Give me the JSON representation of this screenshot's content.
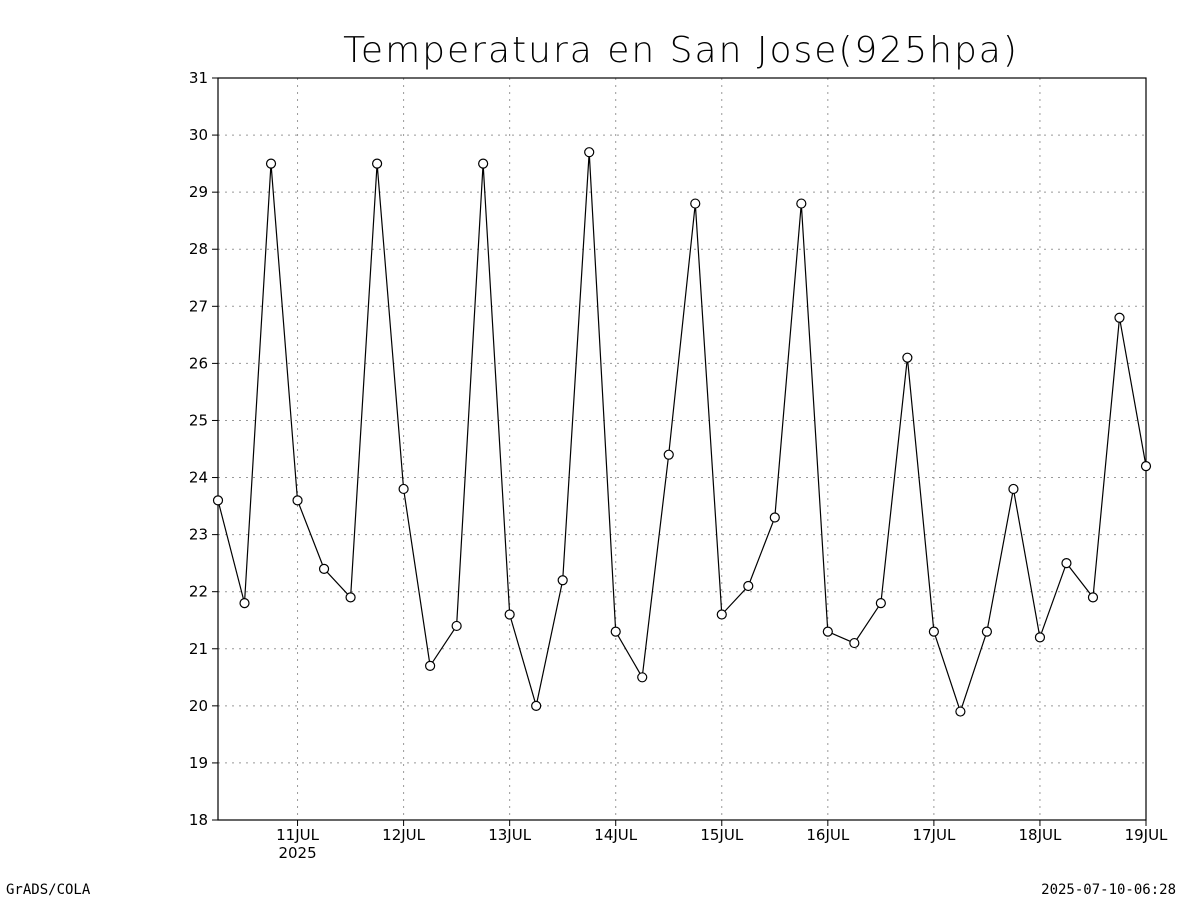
{
  "chart_data": {
    "type": "line",
    "title": "Temperatura en San Jose(925hpa)",
    "xlabel": "",
    "ylabel": "",
    "x_range": [
      "2025-07-10T06:00",
      "2025-07-19T00:00"
    ],
    "ylim": [
      18,
      31
    ],
    "y_ticks": [
      18,
      19,
      20,
      21,
      22,
      23,
      24,
      25,
      26,
      27,
      28,
      29,
      30,
      31
    ],
    "x_ticks": [
      {
        "x": "2025-07-11T00:00",
        "label": "11JUL",
        "sublabel": "2025"
      },
      {
        "x": "2025-07-12T00:00",
        "label": "12JUL",
        "sublabel": ""
      },
      {
        "x": "2025-07-13T00:00",
        "label": "13JUL",
        "sublabel": ""
      },
      {
        "x": "2025-07-14T00:00",
        "label": "14JUL",
        "sublabel": ""
      },
      {
        "x": "2025-07-15T00:00",
        "label": "15JUL",
        "sublabel": ""
      },
      {
        "x": "2025-07-16T00:00",
        "label": "16JUL",
        "sublabel": ""
      },
      {
        "x": "2025-07-17T00:00",
        "label": "17JUL",
        "sublabel": ""
      },
      {
        "x": "2025-07-18T00:00",
        "label": "18JUL",
        "sublabel": ""
      },
      {
        "x": "2025-07-19T00:00",
        "label": "19JUL",
        "sublabel": ""
      }
    ],
    "grid": true,
    "series": [
      {
        "name": "",
        "color": "#000000",
        "marker": "open-circle",
        "points": [
          {
            "x": "2025-07-10T06:00",
            "y": 23.6
          },
          {
            "x": "2025-07-10T12:00",
            "y": 21.8
          },
          {
            "x": "2025-07-10T18:00",
            "y": 29.5
          },
          {
            "x": "2025-07-11T00:00",
            "y": 23.6
          },
          {
            "x": "2025-07-11T06:00",
            "y": 22.4
          },
          {
            "x": "2025-07-11T12:00",
            "y": 21.9
          },
          {
            "x": "2025-07-11T18:00",
            "y": 29.5
          },
          {
            "x": "2025-07-12T00:00",
            "y": 23.8
          },
          {
            "x": "2025-07-12T06:00",
            "y": 20.7
          },
          {
            "x": "2025-07-12T12:00",
            "y": 21.4
          },
          {
            "x": "2025-07-12T18:00",
            "y": 29.5
          },
          {
            "x": "2025-07-13T00:00",
            "y": 21.6
          },
          {
            "x": "2025-07-13T06:00",
            "y": 20.0
          },
          {
            "x": "2025-07-13T12:00",
            "y": 22.2
          },
          {
            "x": "2025-07-13T18:00",
            "y": 29.7
          },
          {
            "x": "2025-07-14T00:00",
            "y": 21.3
          },
          {
            "x": "2025-07-14T06:00",
            "y": 20.5
          },
          {
            "x": "2025-07-14T12:00",
            "y": 24.4
          },
          {
            "x": "2025-07-14T18:00",
            "y": 28.8
          },
          {
            "x": "2025-07-15T00:00",
            "y": 21.6
          },
          {
            "x": "2025-07-15T06:00",
            "y": 22.1
          },
          {
            "x": "2025-07-15T12:00",
            "y": 23.3
          },
          {
            "x": "2025-07-15T18:00",
            "y": 28.8
          },
          {
            "x": "2025-07-16T00:00",
            "y": 21.3
          },
          {
            "x": "2025-07-16T06:00",
            "y": 21.1
          },
          {
            "x": "2025-07-16T12:00",
            "y": 21.8
          },
          {
            "x": "2025-07-16T18:00",
            "y": 26.1
          },
          {
            "x": "2025-07-17T00:00",
            "y": 21.3
          },
          {
            "x": "2025-07-17T06:00",
            "y": 19.9
          },
          {
            "x": "2025-07-17T12:00",
            "y": 21.3
          },
          {
            "x": "2025-07-17T18:00",
            "y": 23.8
          },
          {
            "x": "2025-07-18T00:00",
            "y": 21.2
          },
          {
            "x": "2025-07-18T06:00",
            "y": 22.5
          },
          {
            "x": "2025-07-18T12:00",
            "y": 21.9
          },
          {
            "x": "2025-07-18T18:00",
            "y": 26.8
          },
          {
            "x": "2025-07-19T00:00",
            "y": 24.2
          }
        ]
      }
    ]
  },
  "footer": {
    "left": "GrADS/COLA",
    "right": "2025-07-10-06:28"
  }
}
